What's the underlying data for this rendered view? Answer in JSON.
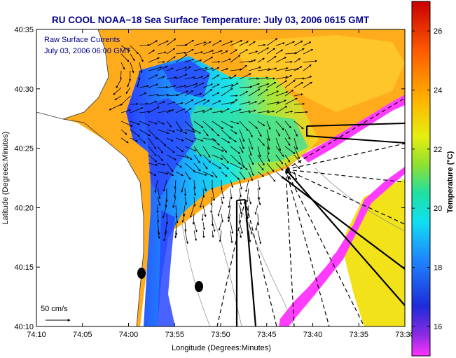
{
  "chart_data": {
    "type": "heatmap",
    "title": "RU COOL  NOAA−18  Sea Surface Temperature:  July 03, 2006 0615 GMT",
    "overlay_lines": [
      "Raw Surface Currents",
      "July 03, 2006 06:00 GMT"
    ],
    "xlabel": "Longitude (Degrees:Minutes)",
    "ylabel": "Latitude (Degrees:Minutes)",
    "x_ticks": [
      "74:10",
      "74:05",
      "74:00",
      "73:55",
      "73:50",
      "73:45",
      "73:40",
      "73:35",
      "73:30"
    ],
    "y_ticks": [
      "40:35",
      "40:30",
      "40:25",
      "40:20",
      "40:15",
      "40:10"
    ],
    "colorbar": {
      "label": "Temperature (°C)",
      "ticks": [
        "26",
        "24",
        "22",
        "20",
        "18",
        "16"
      ],
      "range": [
        15,
        27
      ],
      "colormap": "jet"
    },
    "vector_scale_label": "50 cm/s",
    "grid": false,
    "legend": "none"
  }
}
